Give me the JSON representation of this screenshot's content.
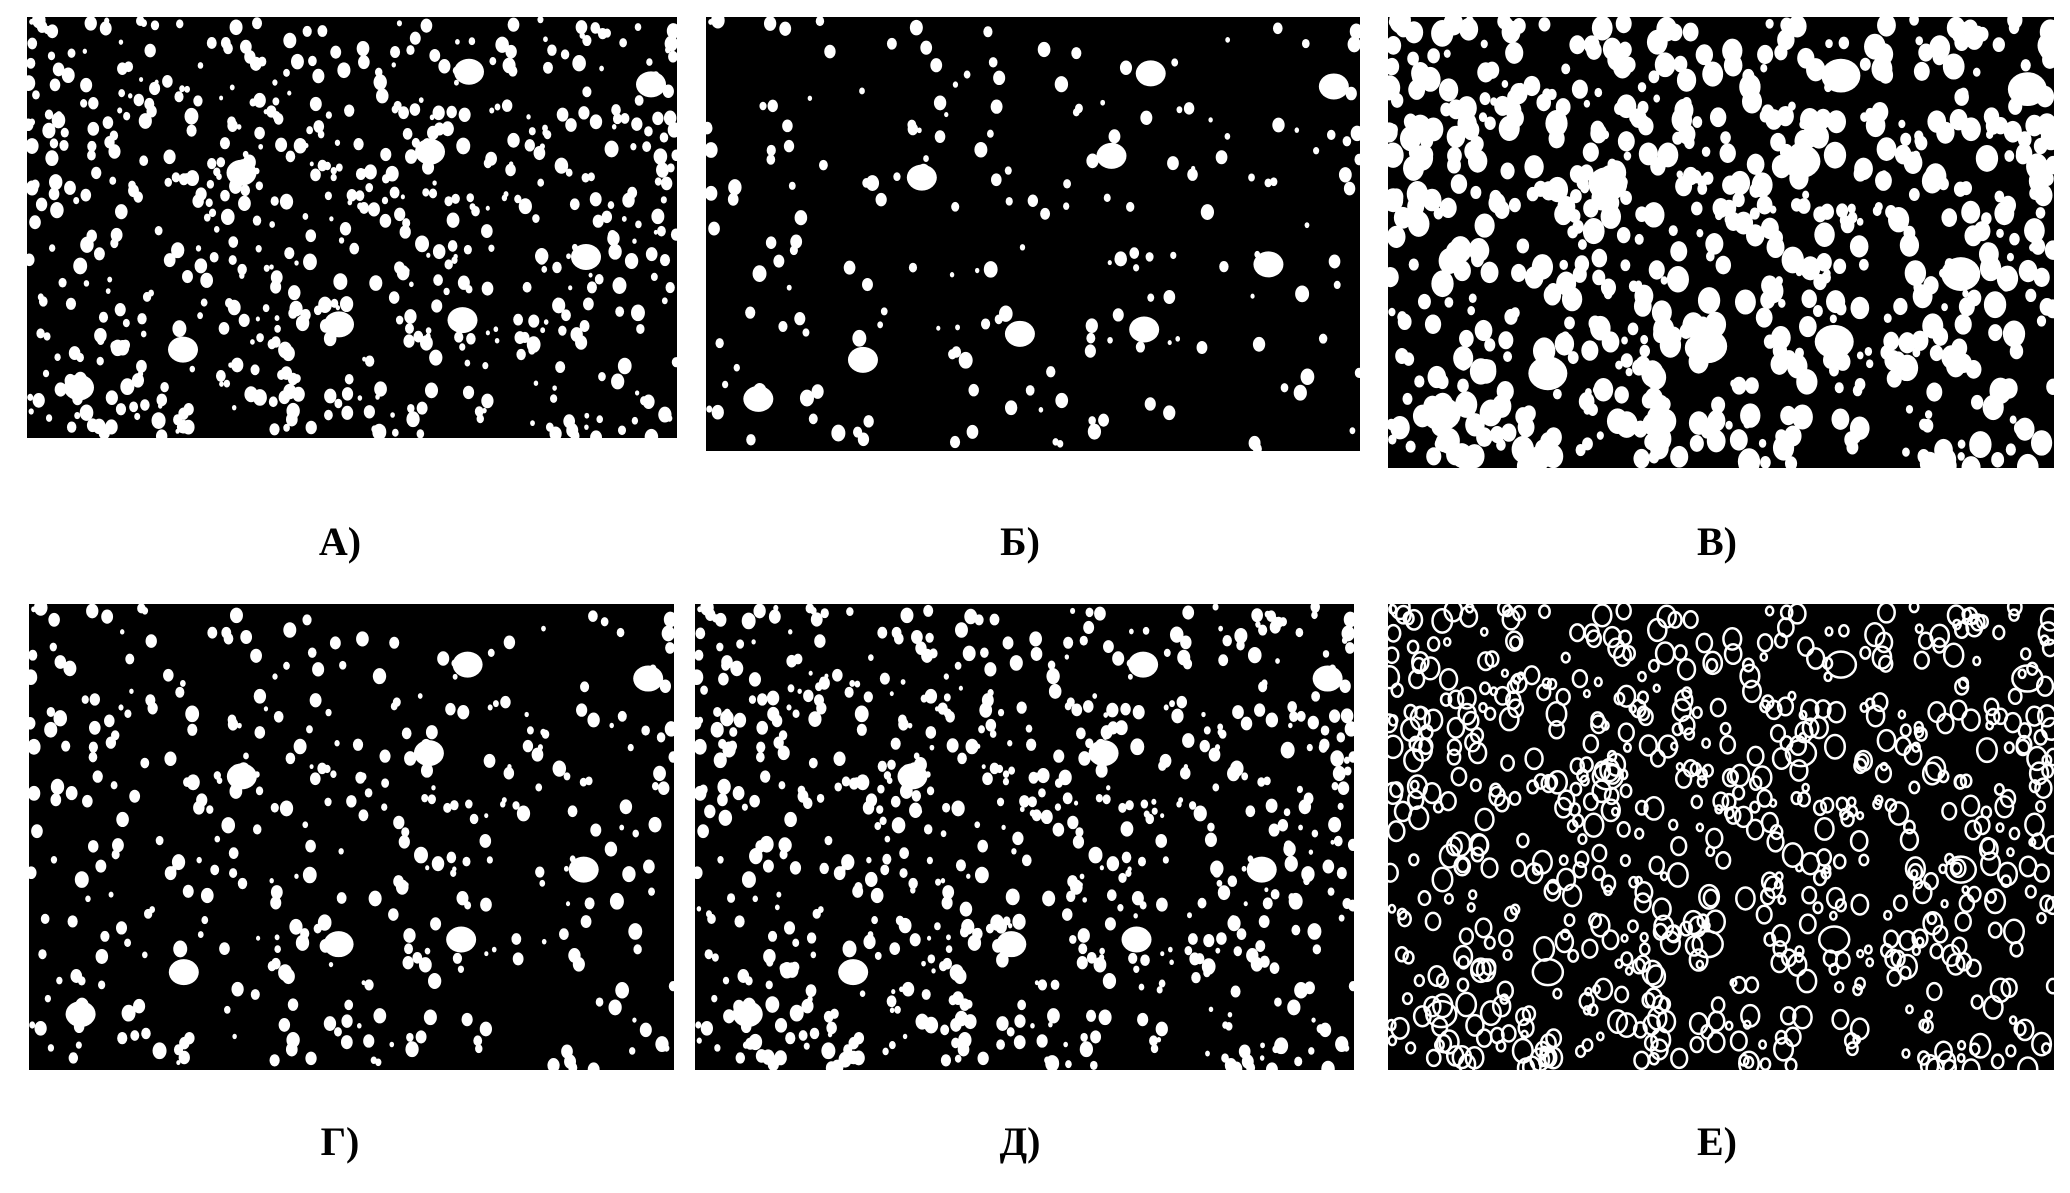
{
  "figure": {
    "panels": [
      {
        "id": "a",
        "label": "А)",
        "density": 0.9,
        "style": "filled"
      },
      {
        "id": "b",
        "label": "Б)",
        "density": 0.25,
        "style": "filled"
      },
      {
        "id": "v",
        "label": "В)",
        "density": 1.0,
        "style": "filled-large"
      },
      {
        "id": "g",
        "label": "Г)",
        "density": 0.5,
        "style": "filled"
      },
      {
        "id": "d",
        "label": "Д)",
        "density": 1.0,
        "style": "filled"
      },
      {
        "id": "e",
        "label": "Е)",
        "density": 1.0,
        "style": "outline"
      }
    ],
    "colors": {
      "background": "#000000",
      "foreground": "#ffffff"
    }
  }
}
